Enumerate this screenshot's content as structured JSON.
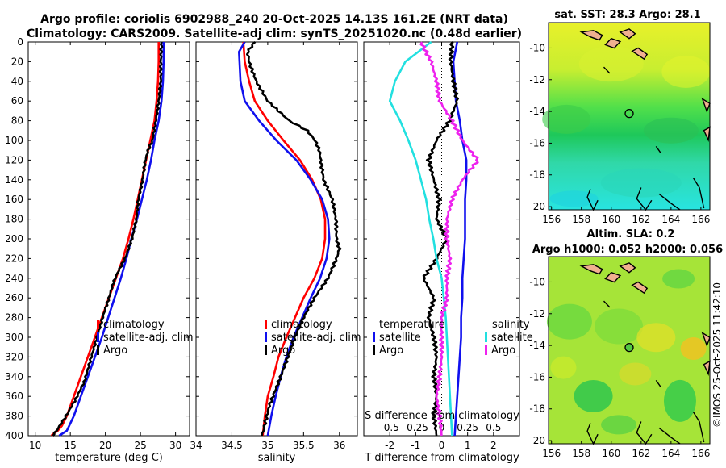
{
  "header": {
    "line1": "Argo profile: coriolis 6902988_240 20-Oct-2025 14.13S 161.2E (NRT data)",
    "line2": "Climatology: CARS2009. Satellite-adj clim: synTS_20251020.nc (0.48d earlier)"
  },
  "colors": {
    "red": "#ff0000",
    "blue": "#1010ee",
    "black": "#000000",
    "cyan": "#22e0e0",
    "magenta": "#ee22ee"
  },
  "depth_ticks": [
    "0",
    "20",
    "40",
    "60",
    "80",
    "100",
    "120",
    "140",
    "160",
    "180",
    "200",
    "220",
    "240",
    "260",
    "280",
    "300",
    "320",
    "340",
    "360",
    "380",
    "400"
  ],
  "chart_data": [
    {
      "type": "line",
      "name": "temperature-profile",
      "xlabel": "temperature (deg C)",
      "ylabel": "depth",
      "xlim": [
        9,
        32
      ],
      "ylim": [
        0,
        400
      ],
      "y_reversed": true,
      "xticks": [
        10,
        15,
        20,
        25,
        30
      ],
      "xtick_labels": [
        "10",
        "15",
        "20",
        "25",
        "30"
      ],
      "legend": [
        "climatology",
        "satellite-adj. clim",
        "Argo"
      ],
      "series": [
        {
          "name": "climatology",
          "color": "red",
          "x": [
            27.6,
            27.6,
            27.5,
            27.3,
            27.0,
            26.4,
            25.8,
            25.2,
            24.6,
            24.0,
            23.3,
            22.5,
            21.5,
            20.5,
            19.5,
            18.5,
            17.5,
            16.5,
            15.5,
            14.5,
            13.8,
            13.2,
            12.6,
            12.3
          ],
          "y": [
            0,
            20,
            40,
            60,
            80,
            100,
            120,
            140,
            160,
            180,
            200,
            220,
            240,
            260,
            280,
            300,
            320,
            340,
            360,
            380,
            390,
            395,
            398,
            400
          ]
        },
        {
          "name": "satellite-adj. clim",
          "color": "blue",
          "x": [
            28.3,
            28.3,
            28.2,
            28.0,
            27.6,
            27.0,
            26.5,
            25.9,
            25.2,
            24.5,
            23.7,
            23.0,
            22.2,
            21.3,
            20.4,
            19.5,
            18.5,
            17.5,
            16.5,
            15.5,
            14.5,
            13.4
          ],
          "y": [
            0,
            20,
            40,
            60,
            80,
            100,
            120,
            140,
            160,
            180,
            200,
            220,
            240,
            260,
            280,
            300,
            320,
            340,
            360,
            380,
            395,
            400
          ]
        },
        {
          "name": "Argo",
          "color": "black",
          "x": [
            28.0,
            27.9,
            27.9,
            27.6,
            27.2,
            26.7,
            26.1,
            25.7,
            25.3,
            24.7,
            24.4,
            23.8,
            22.8,
            21.7,
            21.1,
            20.5,
            19.6,
            18.8,
            18.2,
            17.6,
            17.0,
            16.3,
            15.6,
            14.8,
            14.2,
            13.5,
            12.8,
            12.5
          ],
          "y": [
            0,
            20,
            40,
            60,
            80,
            100,
            110,
            120,
            140,
            160,
            180,
            200,
            220,
            235,
            245,
            260,
            280,
            300,
            315,
            330,
            345,
            355,
            365,
            375,
            382,
            390,
            397,
            400
          ]
        }
      ]
    },
    {
      "type": "line",
      "name": "salinity-profile",
      "xlabel": "salinity",
      "ylabel": "depth",
      "xlim": [
        34,
        36.25
      ],
      "ylim": [
        0,
        400
      ],
      "y_reversed": true,
      "xticks": [
        34,
        34.5,
        35,
        35.5,
        36
      ],
      "xtick_labels": [
        "34",
        "34.5",
        "35",
        "35.5",
        "36"
      ],
      "legend": [
        "climatology",
        "satellite-adj. clim",
        "Argo"
      ],
      "series": [
        {
          "name": "climatology",
          "color": "red",
          "x": [
            34.66,
            34.68,
            34.74,
            34.82,
            35.0,
            35.22,
            35.45,
            35.62,
            35.74,
            35.8,
            35.8,
            35.76,
            35.65,
            35.5,
            35.38,
            35.26,
            35.15,
            35.08,
            35.0,
            34.96,
            34.93
          ],
          "y": [
            0,
            20,
            40,
            60,
            80,
            100,
            120,
            140,
            160,
            180,
            200,
            220,
            240,
            260,
            280,
            300,
            320,
            340,
            360,
            380,
            400
          ]
        },
        {
          "name": "satellite-adj. clim",
          "color": "blue",
          "x": [
            34.68,
            34.6,
            34.62,
            34.68,
            34.88,
            35.12,
            35.4,
            35.6,
            35.76,
            35.84,
            35.86,
            35.82,
            35.73,
            35.6,
            35.48,
            35.36,
            35.26,
            35.18,
            35.11,
            35.05,
            35.0
          ],
          "y": [
            0,
            10,
            40,
            60,
            80,
            100,
            120,
            140,
            160,
            180,
            200,
            220,
            240,
            260,
            280,
            300,
            320,
            340,
            360,
            380,
            400
          ]
        },
        {
          "name": "Argo",
          "color": "black",
          "x": [
            34.82,
            34.72,
            34.74,
            34.84,
            35.0,
            35.3,
            35.55,
            35.66,
            35.72,
            35.74,
            35.78,
            35.9,
            35.95,
            35.96,
            36.0,
            35.96,
            35.84,
            35.65,
            35.5,
            35.38,
            35.28,
            35.18,
            35.1,
            35.02,
            34.97,
            34.94,
            34.92
          ],
          "y": [
            0,
            10,
            20,
            40,
            60,
            80,
            90,
            100,
            110,
            120,
            140,
            160,
            180,
            200,
            210,
            220,
            240,
            260,
            280,
            300,
            320,
            340,
            355,
            370,
            385,
            395,
            400
          ]
        }
      ]
    },
    {
      "type": "line",
      "name": "difference-profile",
      "xlabel": "T difference from climatology",
      "x2label": "S difference from climatology",
      "ylabel": "depth",
      "xlim": [
        -3,
        3
      ],
      "ylim": [
        0,
        400
      ],
      "y_reversed": true,
      "xticks": [
        -2,
        -1,
        0,
        1,
        2
      ],
      "xtick_labels": [
        "-2",
        "-1",
        "0",
        "1",
        "2"
      ],
      "x2tick_labels": [
        "-0.5",
        "-0.25",
        "0",
        "0.25",
        "0.5"
      ],
      "legend_left_title": "temperature",
      "legend_right_title": "salinity",
      "legend": [
        "satellite",
        "Argo",
        "satellite",
        "Argo"
      ],
      "series": [
        {
          "name": "T satellite",
          "color": "blue",
          "x": [
            0.6,
            0.45,
            0.5,
            0.55,
            0.7,
            0.8,
            0.95,
            0.95,
            0.9,
            0.9,
            0.9,
            0.85,
            0.8,
            0.8,
            0.75,
            0.75,
            0.7,
            0.6,
            0.5
          ],
          "y": [
            0,
            20,
            40,
            60,
            80,
            100,
            120,
            140,
            160,
            180,
            200,
            220,
            240,
            260,
            280,
            300,
            320,
            360,
            400
          ]
        },
        {
          "name": "T Argo",
          "color": "black",
          "x": [
            0.4,
            0.35,
            0.45,
            0.6,
            0.3,
            -0.2,
            -0.5,
            -0.3,
            -0.1,
            -0.2,
            0.2,
            -0.2,
            -0.7,
            -0.3,
            -0.5,
            -0.3,
            -0.2,
            -0.3,
            -0.2,
            -0.3,
            -0.2
          ],
          "y": [
            0,
            20,
            40,
            60,
            80,
            100,
            120,
            140,
            160,
            180,
            200,
            220,
            240,
            260,
            280,
            300,
            320,
            340,
            360,
            380,
            400
          ]
        },
        {
          "name": "S satellite",
          "color": "cyan",
          "x": [
            -0.1,
            -0.35,
            -0.45,
            -0.5,
            -0.4,
            -0.32,
            -0.25,
            -0.2,
            -0.15,
            -0.12,
            -0.08,
            -0.05,
            0,
            0.02,
            0.04,
            0.05,
            0.06,
            0.07,
            0.08,
            0.09,
            0.1
          ],
          "y": [
            0,
            20,
            40,
            60,
            80,
            100,
            120,
            140,
            160,
            180,
            200,
            220,
            240,
            260,
            280,
            300,
            320,
            340,
            360,
            380,
            400
          ]
        },
        {
          "name": "S Argo",
          "color": "magenta",
          "x": [
            -0.2,
            -0.1,
            -0.05,
            -0.02,
            0.1,
            0.2,
            0.35,
            0.2,
            0.1,
            0.05,
            0.05,
            0.08,
            0.05,
            0.05,
            0,
            0,
            0,
            -0.02,
            -0.05,
            -0.02,
            0
          ],
          "y": [
            0,
            20,
            40,
            60,
            80,
            100,
            120,
            140,
            160,
            180,
            200,
            220,
            240,
            260,
            280,
            300,
            320,
            340,
            360,
            380,
            400
          ]
        }
      ]
    },
    {
      "type": "heatmap",
      "name": "sst-map",
      "title": "sat. SST: 28.3  Argo: 28.1",
      "xlim": [
        155.8,
        166.6
      ],
      "ylim": [
        -20.2,
        -8.4
      ],
      "xticks": [
        "156",
        "158",
        "160",
        "162",
        "164",
        "166"
      ],
      "yticks": [
        "-10",
        "-12",
        "-14",
        "-16",
        "-18",
        "-20"
      ],
      "argo_position": {
        "lon": 161.2,
        "lat": -14.13
      }
    },
    {
      "type": "heatmap",
      "name": "sla-map",
      "title": "Altim. SLA: 0.2",
      "subtitle": "Argo h1000: 0.052 h2000: 0.056",
      "xlim": [
        155.8,
        166.6
      ],
      "ylim": [
        -20.2,
        -8.4
      ],
      "xticks": [
        "156",
        "158",
        "160",
        "162",
        "164",
        "166"
      ],
      "yticks": [
        "-10",
        "-12",
        "-14",
        "-16",
        "-18",
        "-20"
      ],
      "argo_position": {
        "lon": 161.2,
        "lat": -14.13
      }
    }
  ],
  "watermark": "©IMOS 25-Oct-2025 11:42:10"
}
